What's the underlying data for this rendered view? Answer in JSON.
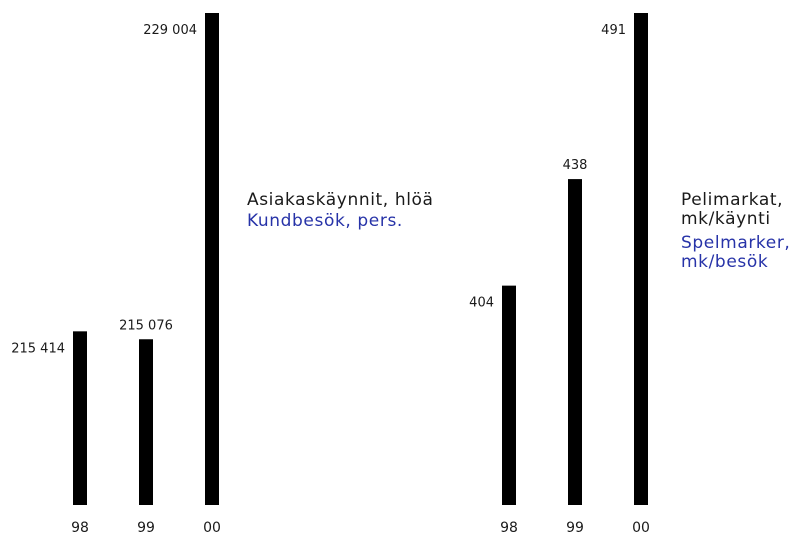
{
  "chart_data": [
    {
      "type": "bar",
      "categories": [
        "98",
        "99",
        "00"
      ],
      "values": [
        215414,
        215076,
        229004
      ],
      "value_labels": [
        "215 414",
        "215 076",
        "229 004"
      ],
      "title_fi": "Asiakaskäynnit, hlöä",
      "title_sv": "Kundbesök, pers.",
      "xlabel": "",
      "ylabel": "",
      "grid": false,
      "bar_color": "#000000"
    },
    {
      "type": "bar",
      "categories": [
        "98",
        "99",
        "00"
      ],
      "values": [
        404,
        438,
        491
      ],
      "value_labels": [
        "404",
        "438",
        "491"
      ],
      "title_fi_lines": [
        "Pelimarkat,",
        "mk/käynti"
      ],
      "title_sv_lines": [
        "Spelmarker,",
        "mk/besök"
      ],
      "xlabel": "",
      "ylabel": "",
      "grid": false,
      "bar_color": "#000000"
    }
  ],
  "colors": {
    "bar": "#000000",
    "text": "#1a1a1a",
    "swedish_caption": "#2733a8"
  }
}
